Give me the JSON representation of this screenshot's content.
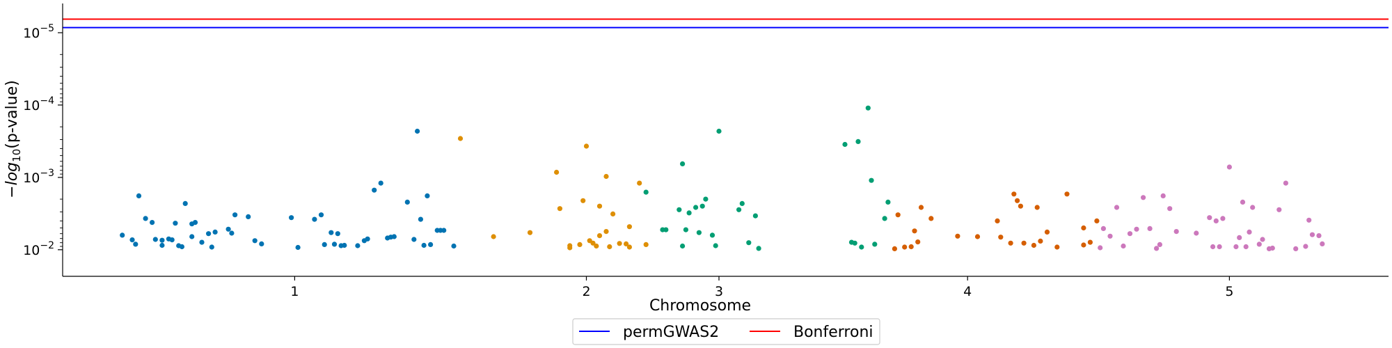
{
  "chart_data": {
    "type": "scatter",
    "title": "",
    "xlabel": "Chromosome",
    "ylabel_prefix": "−log",
    "ylabel_sub": "10",
    "ylabel_suffix": "(p-value)",
    "y_scale": "log",
    "y_inverted": true,
    "ylim": [
      0.016,
      5.5e-06
    ],
    "xlim": [
      0,
      40
    ],
    "x_ticks": [
      {
        "label": "1",
        "x": 7
      },
      {
        "label": "2",
        "x": 15.8
      },
      {
        "label": "3",
        "x": 19.8
      },
      {
        "label": "4",
        "x": 27.3
      },
      {
        "label": "5",
        "x": 35.2
      }
    ],
    "y_ticks": [
      {
        "value": 0.01,
        "base": "10",
        "exp": "−2"
      },
      {
        "value": 0.001,
        "base": "10",
        "exp": "−3"
      },
      {
        "value": 0.0001,
        "base": "10",
        "exp": "−4"
      },
      {
        "value": 1e-05,
        "base": "10",
        "exp": "−5"
      }
    ],
    "thresholds": [
      {
        "name": "permGWAS2",
        "color": "#0000ff",
        "y": 8.5e-06
      },
      {
        "name": "Bonferroni",
        "color": "#ff0000",
        "y": 6.5e-06
      }
    ],
    "grid": false,
    "legend_position": "bottom-center",
    "series": [
      {
        "chromosome": "1",
        "color": "#0173b2",
        "points": [
          [
            1.8,
            0.0063
          ],
          [
            2.1,
            0.0073
          ],
          [
            2.2,
            0.0084
          ],
          [
            2.3,
            0.0018
          ],
          [
            2.5,
            0.0037
          ],
          [
            2.7,
            0.0042
          ],
          [
            2.8,
            0.0072
          ],
          [
            3.0,
            0.0087
          ],
          [
            3.0,
            0.0074
          ],
          [
            3.2,
            0.0071
          ],
          [
            3.4,
            0.0043
          ],
          [
            3.5,
            0.0088
          ],
          [
            3.6,
            0.0091
          ],
          [
            3.3,
            0.0073
          ],
          [
            3.7,
            0.0023
          ],
          [
            3.9,
            0.0044
          ],
          [
            3.9,
            0.0066
          ],
          [
            4.0,
            0.0042
          ],
          [
            4.2,
            0.0079
          ],
          [
            4.4,
            0.006
          ],
          [
            4.5,
            0.0092
          ],
          [
            4.6,
            0.0057
          ],
          [
            5.0,
            0.0052
          ],
          [
            5.1,
            0.0059
          ],
          [
            5.2,
            0.0033
          ],
          [
            5.6,
            0.0035
          ],
          [
            5.8,
            0.0075
          ],
          [
            6.0,
            0.0083
          ],
          [
            6.9,
            0.0036
          ],
          [
            7.1,
            0.0093
          ],
          [
            7.6,
            0.0038
          ],
          [
            7.8,
            0.0033
          ],
          [
            7.9,
            0.0085
          ],
          [
            8.1,
            0.0058
          ],
          [
            8.2,
            0.0084
          ],
          [
            8.3,
            0.006
          ],
          [
            8.4,
            0.0088
          ],
          [
            8.5,
            0.0087
          ],
          [
            8.9,
            0.0088
          ],
          [
            9.1,
            0.0075
          ],
          [
            9.2,
            0.0071
          ],
          [
            9.4,
            0.0015
          ],
          [
            9.6,
            0.0012
          ],
          [
            9.8,
            0.0069
          ],
          [
            9.9,
            0.0067
          ],
          [
            10.0,
            0.0066
          ],
          [
            10.4,
            0.0022
          ],
          [
            10.6,
            0.0072
          ],
          [
            10.7,
            0.00023
          ],
          [
            10.8,
            0.0038
          ],
          [
            10.9,
            0.0087
          ],
          [
            11.0,
            0.0018
          ],
          [
            11.1,
            0.0085
          ],
          [
            11.3,
            0.0054
          ],
          [
            11.4,
            0.0054
          ],
          [
            11.5,
            0.0054
          ],
          [
            11.8,
            0.0089
          ]
        ]
      },
      {
        "chromosome": "2",
        "color": "#de8f05",
        "points": [
          [
            12.0,
            0.00029
          ],
          [
            13.0,
            0.0066
          ],
          [
            14.1,
            0.0058
          ],
          [
            14.9,
            0.00085
          ],
          [
            15.0,
            0.0027
          ],
          [
            15.3,
            0.0094
          ],
          [
            15.3,
            0.0088
          ],
          [
            15.6,
            0.0085
          ],
          [
            15.7,
            0.0021
          ],
          [
            15.9,
            0.0075
          ],
          [
            16.0,
            0.0081
          ],
          [
            15.8,
            0.00037
          ],
          [
            16.1,
            0.0089
          ],
          [
            16.2,
            0.0064
          ],
          [
            16.2,
            0.0025
          ],
          [
            16.4,
            0.0056
          ],
          [
            16.4,
            0.00097
          ],
          [
            16.5,
            0.0091
          ],
          [
            16.6,
            0.0032
          ],
          [
            16.8,
            0.0082
          ],
          [
            17.0,
            0.0083
          ],
          [
            17.1,
            0.0048
          ],
          [
            17.1,
            0.0092
          ],
          [
            17.4,
            0.0012
          ],
          [
            17.6,
            0.0085
          ]
        ]
      },
      {
        "chromosome": "3",
        "color": "#029e73",
        "points": [
          [
            17.6,
            0.0016
          ],
          [
            18.1,
            0.0053
          ],
          [
            18.2,
            0.0053
          ],
          [
            18.6,
            0.0028
          ],
          [
            18.7,
            0.00065
          ],
          [
            18.7,
            0.0089
          ],
          [
            18.8,
            0.0053
          ],
          [
            18.9,
            0.0031
          ],
          [
            19.1,
            0.0026
          ],
          [
            19.2,
            0.0058
          ],
          [
            19.3,
            0.0025
          ],
          [
            19.4,
            0.002
          ],
          [
            19.6,
            0.0063
          ],
          [
            19.7,
            0.0088
          ],
          [
            19.8,
            0.00023
          ],
          [
            20.4,
            0.0028
          ],
          [
            20.5,
            0.0023
          ],
          [
            20.7,
            0.008
          ],
          [
            20.9,
            0.0034
          ],
          [
            21.0,
            0.0096
          ],
          [
            23.6,
            0.00035
          ],
          [
            23.8,
            0.0079
          ],
          [
            23.9,
            0.0081
          ],
          [
            24.0,
            0.00032
          ],
          [
            24.1,
            0.0092
          ],
          [
            24.3,
            0.00011
          ],
          [
            24.4,
            0.0011
          ],
          [
            24.5,
            0.0084
          ],
          [
            24.8,
            0.0037
          ],
          [
            24.9,
            0.0022
          ]
        ]
      },
      {
        "chromosome": "4",
        "color": "#d55e00",
        "points": [
          [
            25.1,
            0.0097
          ],
          [
            25.2,
            0.0033
          ],
          [
            25.4,
            0.0092
          ],
          [
            25.6,
            0.0091
          ],
          [
            25.7,
            0.0055
          ],
          [
            25.8,
            0.0078
          ],
          [
            25.9,
            0.0026
          ],
          [
            26.2,
            0.0037
          ],
          [
            27.0,
            0.0065
          ],
          [
            27.6,
            0.0066
          ],
          [
            28.2,
            0.004
          ],
          [
            28.3,
            0.0067
          ],
          [
            28.6,
            0.0081
          ],
          [
            28.7,
            0.0017
          ],
          [
            28.8,
            0.0021
          ],
          [
            28.9,
            0.0025
          ],
          [
            29.0,
            0.0081
          ],
          [
            29.3,
            0.0087
          ],
          [
            29.4,
            0.0026
          ],
          [
            29.5,
            0.0076
          ],
          [
            29.7,
            0.0057
          ],
          [
            30.0,
            0.0092
          ],
          [
            30.3,
            0.0017
          ],
          [
            30.8,
            0.0086
          ],
          [
            30.8,
            0.005
          ],
          [
            31.0,
            0.0079
          ],
          [
            31.2,
            0.004
          ]
        ]
      },
      {
        "chromosome": "5",
        "color": "#cc78bc",
        "points": [
          [
            31.3,
            0.0094
          ],
          [
            31.4,
            0.0051
          ],
          [
            31.6,
            0.0065
          ],
          [
            31.8,
            0.0026
          ],
          [
            32.0,
            0.0089
          ],
          [
            32.2,
            0.006
          ],
          [
            32.4,
            0.0052
          ],
          [
            32.6,
            0.0019
          ],
          [
            32.8,
            0.0051
          ],
          [
            33.0,
            0.0096
          ],
          [
            33.1,
            0.0085
          ],
          [
            33.2,
            0.0018
          ],
          [
            33.4,
            0.0027
          ],
          [
            33.6,
            0.0056
          ],
          [
            34.2,
            0.0059
          ],
          [
            34.6,
            0.0036
          ],
          [
            34.7,
            0.0091
          ],
          [
            34.8,
            0.004
          ],
          [
            34.9,
            0.0091
          ],
          [
            35.0,
            0.0037
          ],
          [
            35.2,
            0.00072
          ],
          [
            35.4,
            0.0091
          ],
          [
            35.5,
            0.0068
          ],
          [
            35.6,
            0.0022
          ],
          [
            35.7,
            0.0091
          ],
          [
            35.8,
            0.0057
          ],
          [
            35.9,
            0.0026
          ],
          [
            36.1,
            0.0084
          ],
          [
            36.2,
            0.0072
          ],
          [
            36.4,
            0.0097
          ],
          [
            36.5,
            0.0095
          ],
          [
            36.7,
            0.0028
          ],
          [
            36.9,
            0.0012
          ],
          [
            37.2,
            0.0097
          ],
          [
            37.5,
            0.009
          ],
          [
            37.6,
            0.0039
          ],
          [
            37.7,
            0.0062
          ],
          [
            37.9,
            0.0064
          ],
          [
            38.0,
            0.0083
          ]
        ]
      }
    ]
  }
}
